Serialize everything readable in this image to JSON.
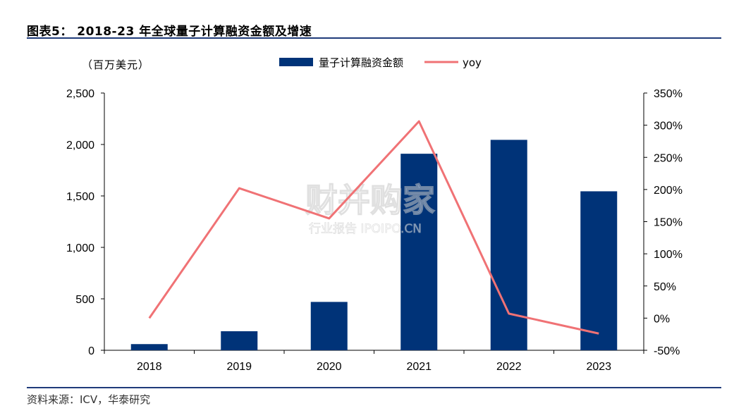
{
  "figure": {
    "title": "图表5： 2018-23 年全球量子计算融资金额及增速",
    "source": "资料来源：ICV，华泰研究",
    "watermark_main": "财并购家",
    "watermark_sub": "行业报告 IPOIPO.CN"
  },
  "colors": {
    "bar": "#003378",
    "line": "#f07275",
    "rule": "#1f3b7a"
  },
  "chart_data": {
    "type": "bar",
    "categories": [
      "2018",
      "2019",
      "2020",
      "2021",
      "2022",
      "2023"
    ],
    "series": [
      {
        "name": "量子计算融资金额",
        "type": "bar",
        "axis": "left",
        "values": [
          60,
          185,
          470,
          1910,
          2045,
          1545
        ]
      },
      {
        "name": "yoy",
        "type": "line",
        "axis": "right",
        "values": [
          0.0,
          2.02,
          1.55,
          3.06,
          0.07,
          -0.24
        ]
      }
    ],
    "left_axis": {
      "unit_label": "（百万美元）",
      "ylim": [
        0,
        2500
      ],
      "ticks": [
        0,
        500,
        1000,
        1500,
        2000,
        2500
      ],
      "tick_labels": [
        "0",
        "500",
        "1,000",
        "1,500",
        "2,000",
        "2,500"
      ]
    },
    "right_axis": {
      "ylim": [
        -0.5,
        3.5
      ],
      "ticks": [
        -0.5,
        0,
        0.5,
        1.0,
        1.5,
        2.0,
        2.5,
        3.0,
        3.5
      ],
      "tick_labels": [
        "-50%",
        "0%",
        "50%",
        "100%",
        "150%",
        "200%",
        "250%",
        "300%",
        "350%"
      ]
    },
    "legend": {
      "position": "top-center"
    },
    "grid": false
  }
}
